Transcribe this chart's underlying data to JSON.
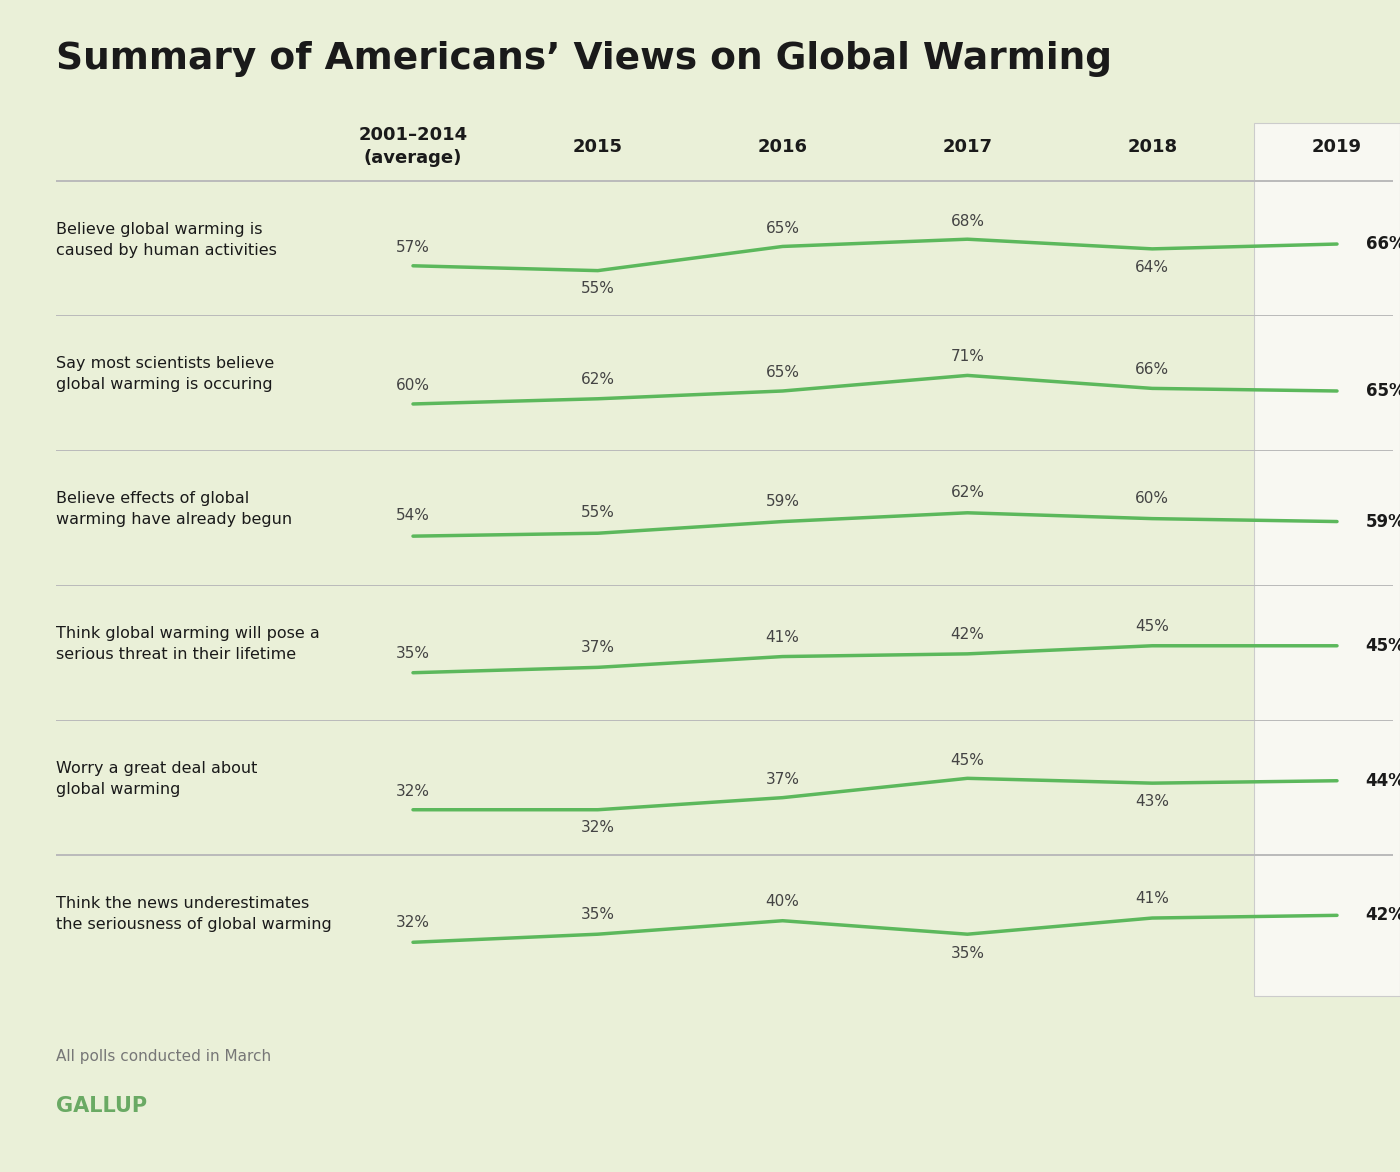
{
  "title": "Summary of Americans’ Views on Global Warming",
  "background_color": "#eaf0d8",
  "white_col_color": "#f8f8f2",
  "line_color": "#5cb85c",
  "text_color": "#1a1a1a",
  "label_color": "#444444",
  "gallup_color": "#6aaa64",
  "x_labels": [
    "2001–2014\n(average)",
    "2015",
    "2016",
    "2017",
    "2018",
    "2019"
  ],
  "rows": [
    {
      "label": "Believe global warming is\ncaused by human activities",
      "values": [
        57,
        55,
        65,
        68,
        64,
        66
      ]
    },
    {
      "label": "Say most scientists believe\nglobal warming is occuring",
      "values": [
        60,
        62,
        65,
        71,
        66,
        65
      ]
    },
    {
      "label": "Believe effects of global\nwarming have already begun",
      "values": [
        54,
        55,
        59,
        62,
        60,
        59
      ]
    },
    {
      "label": "Think global warming will pose a\nserious threat in their lifetime",
      "values": [
        35,
        37,
        41,
        42,
        45,
        45
      ]
    },
    {
      "label": "Worry a great deal about\nglobal warming",
      "values": [
        32,
        32,
        37,
        45,
        43,
        44
      ]
    },
    {
      "label": "Think the news underestimates\nthe seriousness of global warming",
      "values": [
        32,
        35,
        40,
        35,
        41,
        42
      ]
    }
  ],
  "footer_note": "All polls conducted in March",
  "footer_brand": "GALLUP"
}
